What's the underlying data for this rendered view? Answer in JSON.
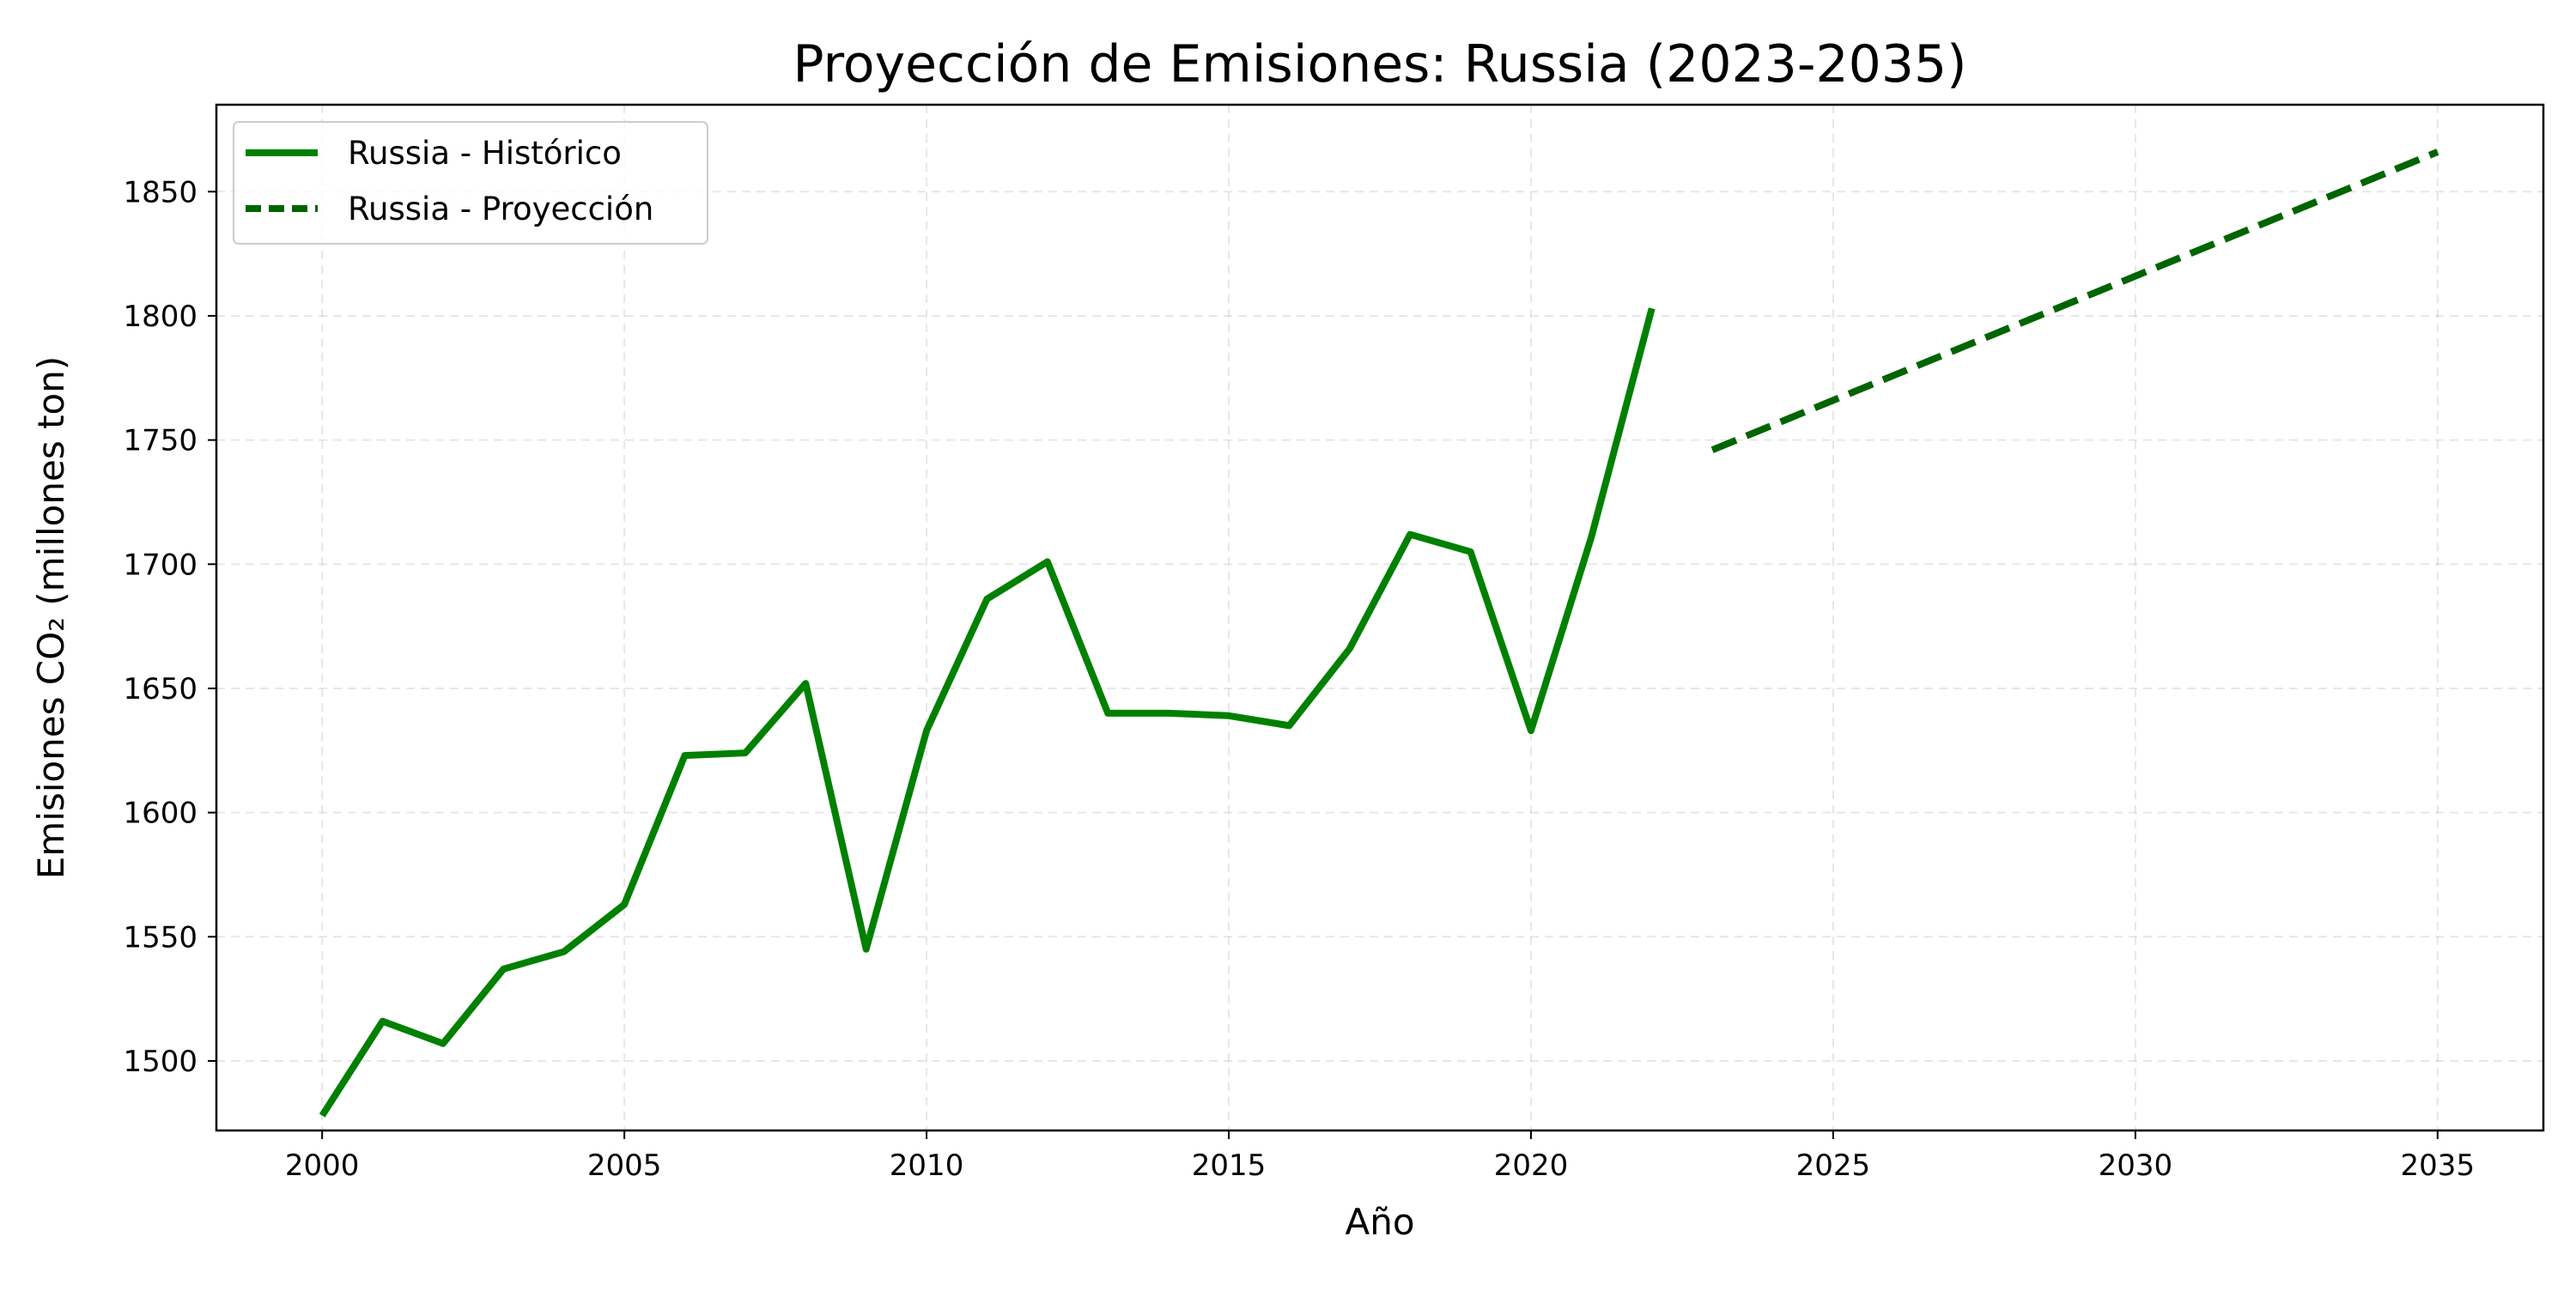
{
  "chart_data": {
    "type": "line",
    "title": "Proyección de Emisiones: Russia (2023-2035)",
    "xlabel": "Año",
    "ylabel": "Emisiones CO₂ (millones ton)",
    "xlim": [
      1998.25,
      2036.75
    ],
    "ylim": [
      1472,
      1885
    ],
    "xticks": [
      2000,
      2005,
      2010,
      2015,
      2020,
      2025,
      2030,
      2035
    ],
    "yticks": [
      1500,
      1550,
      1600,
      1650,
      1700,
      1750,
      1800,
      1850
    ],
    "grid": true,
    "legend_position": "top-left",
    "series": [
      {
        "name": "Russia - Histórico",
        "color": "#008000",
        "line_style": "solid",
        "x": [
          2000,
          2001,
          2002,
          2003,
          2004,
          2005,
          2006,
          2007,
          2008,
          2009,
          2010,
          2011,
          2012,
          2013,
          2014,
          2015,
          2016,
          2017,
          2018,
          2019,
          2020,
          2021,
          2022
        ],
        "values": [
          1478,
          1516,
          1507,
          1537,
          1544,
          1563,
          1623,
          1624,
          1652,
          1545,
          1633,
          1686,
          1701,
          1640,
          1640,
          1639,
          1635,
          1666,
          1712,
          1705,
          1633,
          1711,
          1803
        ]
      },
      {
        "name": "Russia - Proyección",
        "color": "#006400",
        "line_style": "dashed",
        "x": [
          2023,
          2035
        ],
        "values": [
          1746,
          1866
        ]
      }
    ]
  }
}
